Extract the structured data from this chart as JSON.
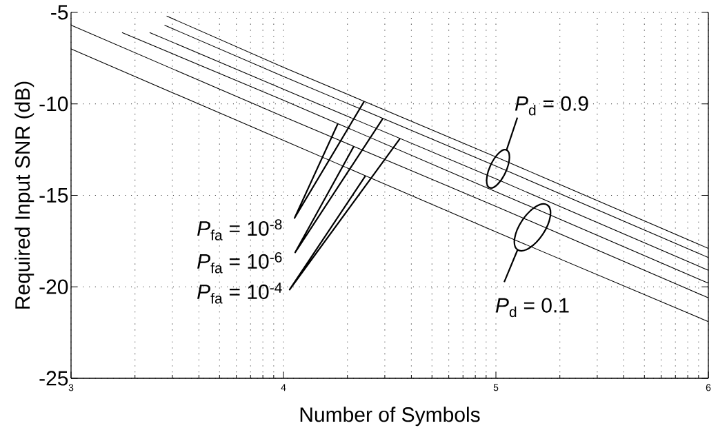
{
  "chart_data": {
    "type": "line",
    "xlabel": "Number of Symbols",
    "ylabel": "Required Input SNR (dB)",
    "xlim": [
      3,
      6
    ],
    "ylim": [
      -25,
      -5
    ],
    "xticks": [
      3,
      {
        "value": 3.301,
        "label": null
      },
      {
        "value": 3.477,
        "label": null
      },
      {
        "value": 3.602,
        "label": null
      },
      {
        "value": 3.699,
        "label": null
      },
      {
        "value": 3.778,
        "label": null
      },
      {
        "value": 3.845,
        "label": null
      },
      {
        "value": 3.903,
        "label": null
      },
      {
        "value": 3.954,
        "label": null
      },
      4,
      {
        "value": 4.301,
        "label": null
      },
      {
        "value": 4.477,
        "label": null
      },
      {
        "value": 4.602,
        "label": null
      },
      {
        "value": 4.699,
        "label": null
      },
      {
        "value": 4.778,
        "label": null
      },
      {
        "value": 4.845,
        "label": null
      },
      {
        "value": 4.903,
        "label": null
      },
      {
        "value": 4.954,
        "label": null
      },
      5,
      {
        "value": 5.301,
        "label": null
      },
      {
        "value": 5.477,
        "label": null
      },
      {
        "value": 5.602,
        "label": null
      },
      {
        "value": 5.699,
        "label": null
      },
      {
        "value": 5.778,
        "label": null
      },
      {
        "value": 5.845,
        "label": null
      },
      {
        "value": 5.903,
        "label": null
      },
      {
        "value": 5.954,
        "label": null
      },
      6
    ],
    "yticks": [
      -25,
      -20,
      -15,
      -10,
      -5
    ],
    "grid": true,
    "series": [
      {
        "color": "#000000",
        "x": [
          3,
          4,
          5,
          6
        ],
        "values": [
          -7.0,
          -12.0,
          -17.0,
          -21.9
        ]
      },
      {
        "color": "#000000",
        "x": [
          3,
          4,
          5,
          6
        ],
        "values": [
          -5.7,
          -10.7,
          -15.6,
          -20.6
        ]
      },
      {
        "color": "#000000",
        "x": [
          3.24,
          4,
          5,
          6
        ],
        "values": [
          -6.1,
          -9.8,
          -14.8,
          -19.8
        ]
      },
      {
        "color": "#000000",
        "x": [
          3.37,
          4,
          5,
          6
        ],
        "values": [
          -6.1,
          -9.2,
          -14.1,
          -19.1
        ]
      },
      {
        "color": "#000000",
        "x": [
          3.44,
          4,
          5,
          6
        ],
        "values": [
          -5.7,
          -8.5,
          -13.4,
          -18.4
        ]
      },
      {
        "color": "#000000",
        "x": [
          3.45,
          4,
          5,
          6
        ],
        "values": [
          -5.2,
          -8.0,
          -12.9,
          -17.9
        ]
      }
    ],
    "annotations": [
      "*P*$_{d}$ = 0.9",
      "*P*$_{fa}$ = 10$^{-8}$",
      "*P*$_{fa}$ = 10$^{-6}$",
      "*P*$_{fa}$ = 10$^{-4}$",
      "*P*$_{d}$ = 0.1"
    ]
  }
}
